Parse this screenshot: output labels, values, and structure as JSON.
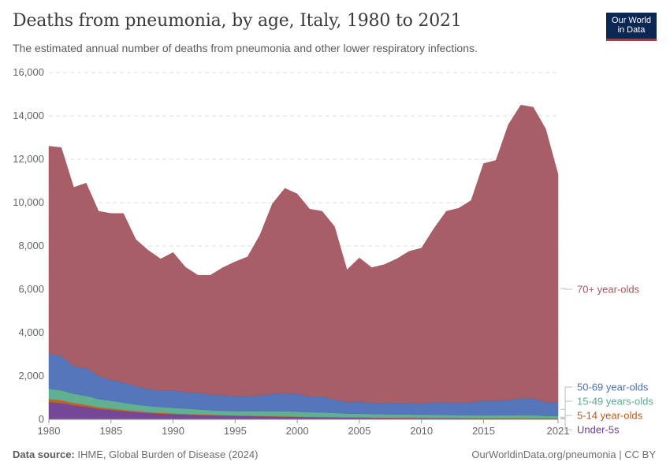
{
  "header": {
    "title": "Deaths from pneumonia, by age, Italy, 1980 to 2021",
    "subtitle": "The estimated annual number of deaths from pneumonia and other lower respiratory infections."
  },
  "logo": {
    "line1": "Our World",
    "line2": "in Data"
  },
  "footer": {
    "source_label": "Data source:",
    "source_text": "IHME, Global Burden of Disease (2024)",
    "link_text": "OurWorldinData.org/pneumonia | CC BY"
  },
  "chart_data": {
    "type": "area",
    "stacked": true,
    "title": "Deaths from pneumonia, by age, Italy, 1980 to 2021",
    "ylim": [
      0,
      16000
    ],
    "yticks": [
      0,
      2000,
      4000,
      6000,
      8000,
      10000,
      12000,
      14000,
      16000
    ],
    "ytick_labels": [
      "0",
      "2,000",
      "4,000",
      "6,000",
      "8,000",
      "10,000",
      "12,000",
      "14,000",
      "16,000"
    ],
    "xlim": [
      1980,
      2021
    ],
    "xticks": [
      1980,
      1985,
      1990,
      1995,
      2000,
      2005,
      2010,
      2015,
      2021
    ],
    "grid": "horizontal dashed",
    "legend_placement": "right, inline labels",
    "x": [
      1980,
      1981,
      1982,
      1983,
      1984,
      1985,
      1986,
      1987,
      1988,
      1989,
      1990,
      1991,
      1992,
      1993,
      1994,
      1995,
      1996,
      1997,
      1998,
      1999,
      2000,
      2001,
      2002,
      2003,
      2004,
      2005,
      2006,
      2007,
      2008,
      2009,
      2010,
      2011,
      2012,
      2013,
      2014,
      2015,
      2016,
      2017,
      2018,
      2019,
      2020,
      2021
    ],
    "series": [
      {
        "name": "Under-5s",
        "color": "#6d3e91",
        "values": [
          800,
          750,
          650,
          580,
          480,
          430,
          380,
          330,
          290,
          260,
          240,
          220,
          200,
          185,
          170,
          160,
          150,
          140,
          130,
          120,
          110,
          100,
          95,
          90,
          85,
          80,
          75,
          70,
          68,
          65,
          62,
          60,
          58,
          56,
          54,
          52,
          50,
          48,
          47,
          46,
          45,
          44
        ]
      },
      {
        "name": "5-14 year-olds",
        "color": "#c05917",
        "values": [
          140,
          130,
          110,
          95,
          80,
          70,
          62,
          55,
          48,
          42,
          38,
          34,
          30,
          28,
          26,
          24,
          22,
          21,
          20,
          19,
          18,
          17,
          16,
          15,
          14,
          14,
          13,
          13,
          12,
          12,
          12,
          11,
          11,
          11,
          10,
          10,
          10,
          10,
          10,
          10,
          10,
          9
        ]
      },
      {
        "name": "15-49 years-olds",
        "color": "#58ac8c",
        "values": [
          480,
          460,
          420,
          410,
          380,
          360,
          330,
          300,
          280,
          270,
          260,
          245,
          230,
          210,
          200,
          200,
          210,
          220,
          230,
          240,
          230,
          215,
          210,
          190,
          170,
          170,
          160,
          155,
          150,
          150,
          145,
          140,
          135,
          130,
          130,
          125,
          130,
          135,
          140,
          140,
          110,
          100
        ]
      },
      {
        "name": "50-69 year-olds",
        "color": "#4c6fb6",
        "values": [
          1620,
          1580,
          1270,
          1290,
          1070,
          960,
          930,
          850,
          790,
          760,
          790,
          760,
          770,
          720,
          720,
          690,
          690,
          720,
          800,
          820,
          820,
          720,
          720,
          630,
          530,
          560,
          510,
          510,
          520,
          520,
          500,
          580,
          580,
          580,
          590,
          680,
          670,
          700,
          780,
          770,
          630,
          620
        ]
      },
      {
        "name": "70+ year-olds",
        "color": "#a2555f",
        "values": [
          9560,
          9620,
          8250,
          8525,
          7590,
          7680,
          7798,
          6765,
          6392,
          6068,
          6372,
          5761,
          5420,
          5507,
          5884,
          6196,
          6428,
          7409,
          8770,
          9461,
          9222,
          8648,
          8559,
          7975,
          6101,
          6626,
          6242,
          6392,
          6650,
          7003,
          7181,
          8009,
          8816,
          8963,
          9316,
          10933,
          11090,
          12707,
          13523,
          13434,
          12605,
          10527
        ]
      }
    ],
    "series_labels": [
      {
        "series": "70+ year-olds",
        "label": "70+ year-olds"
      },
      {
        "series": "50-69 year-olds",
        "label": "50-69 year-olds"
      },
      {
        "series": "15-49 years-olds",
        "label": "15-49 years-olds"
      },
      {
        "series": "5-14 year-olds",
        "label": "5-14 year-olds"
      },
      {
        "series": "Under-5s",
        "label": "Under-5s"
      }
    ]
  }
}
